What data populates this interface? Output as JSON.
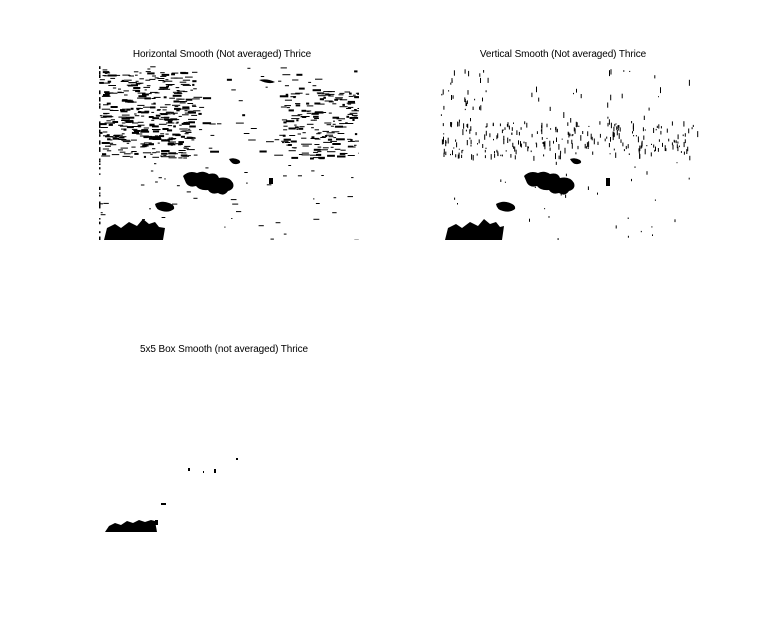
{
  "figure": {
    "background": "#ffffff",
    "panels": [
      {
        "title": "Horizontal Smooth (Not averaged) Thrice"
      },
      {
        "title": "Vertical Smooth (Not averaged) Thrice"
      },
      {
        "title": "5x5 Box Smooth (not averaged) Thrice"
      }
    ]
  },
  "colors": {
    "ink": "#000000",
    "paper": "#ffffff"
  }
}
